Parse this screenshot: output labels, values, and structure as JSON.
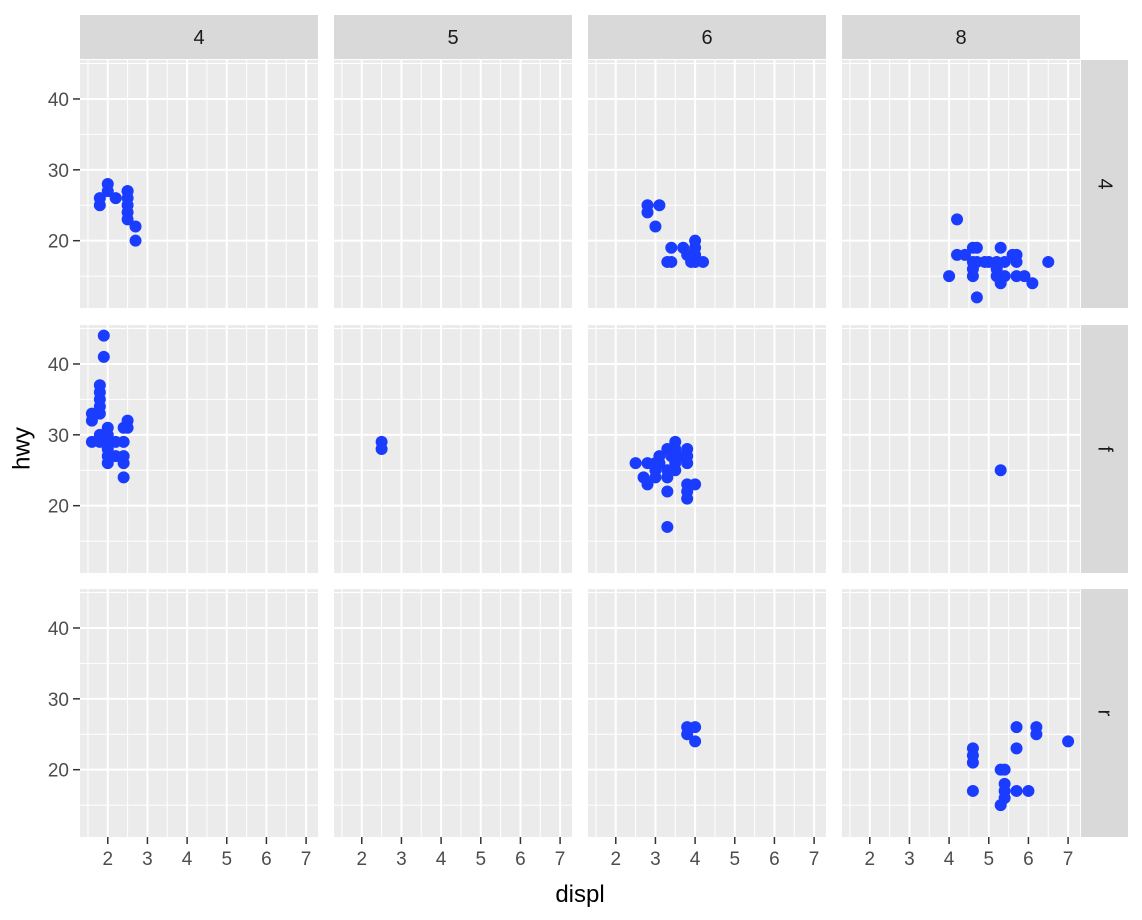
{
  "chart_data": {
    "type": "scatter",
    "facet_grid": true,
    "xlabel": "displ",
    "ylabel": "hwy",
    "xlim": [
      1.3,
      7.3
    ],
    "ylim": [
      10.5,
      45.5
    ],
    "x_ticks": [
      2,
      3,
      4,
      5,
      6,
      7
    ],
    "y_ticks": [
      20,
      30,
      40
    ],
    "grid": true,
    "point_color": "#1a3cff",
    "panel_background": "#ebebeb",
    "strip_background": "#d9d9d9",
    "col_strips": [
      "4",
      "5",
      "6",
      "8"
    ],
    "row_strips": [
      "4",
      "f",
      "r"
    ],
    "panels": [
      {
        "row": 0,
        "col": 0,
        "points": [
          [
            1.8,
            26
          ],
          [
            1.8,
            25
          ],
          [
            2.0,
            28
          ],
          [
            2.0,
            27
          ],
          [
            2.2,
            26
          ],
          [
            2.5,
            27
          ],
          [
            2.5,
            26
          ],
          [
            2.5,
            25
          ],
          [
            2.5,
            24
          ],
          [
            2.5,
            23
          ],
          [
            2.7,
            22
          ],
          [
            2.7,
            20
          ],
          [
            2.5,
            27
          ]
        ]
      },
      {
        "row": 0,
        "col": 1,
        "points": []
      },
      {
        "row": 0,
        "col": 2,
        "points": [
          [
            2.8,
            25
          ],
          [
            2.8,
            24
          ],
          [
            3.1,
            25
          ],
          [
            3.0,
            22
          ],
          [
            3.3,
            17
          ],
          [
            3.4,
            19
          ],
          [
            3.7,
            19
          ],
          [
            3.8,
            18
          ],
          [
            4.0,
            20
          ],
          [
            4.0,
            19
          ],
          [
            4.0,
            18
          ],
          [
            4.0,
            17
          ],
          [
            4.2,
            17
          ],
          [
            3.9,
            17
          ],
          [
            3.4,
            17
          ]
        ]
      },
      {
        "row": 0,
        "col": 3,
        "points": [
          [
            4.0,
            15
          ],
          [
            4.2,
            23
          ],
          [
            4.2,
            18
          ],
          [
            4.4,
            18
          ],
          [
            4.6,
            19
          ],
          [
            4.7,
            19
          ],
          [
            4.6,
            17
          ],
          [
            4.6,
            16
          ],
          [
            4.6,
            15
          ],
          [
            4.7,
            12
          ],
          [
            4.7,
            17
          ],
          [
            4.9,
            17
          ],
          [
            5.0,
            17
          ],
          [
            5.2,
            16
          ],
          [
            5.2,
            15
          ],
          [
            5.3,
            19
          ],
          [
            5.3,
            14
          ],
          [
            5.4,
            17
          ],
          [
            5.4,
            15
          ],
          [
            5.6,
            18
          ],
          [
            5.7,
            18
          ],
          [
            5.7,
            15
          ],
          [
            5.7,
            17
          ],
          [
            5.9,
            15
          ],
          [
            6.1,
            14
          ],
          [
            6.5,
            17
          ],
          [
            5.2,
            17
          ]
        ]
      },
      {
        "row": 1,
        "col": 0,
        "points": [
          [
            1.6,
            33
          ],
          [
            1.6,
            32
          ],
          [
            1.6,
            29
          ],
          [
            1.8,
            37
          ],
          [
            1.8,
            36
          ],
          [
            1.8,
            35
          ],
          [
            1.8,
            34
          ],
          [
            1.8,
            33
          ],
          [
            1.8,
            30
          ],
          [
            1.8,
            29
          ],
          [
            1.9,
            44
          ],
          [
            1.9,
            41
          ],
          [
            2.0,
            31
          ],
          [
            2.0,
            30
          ],
          [
            2.0,
            29
          ],
          [
            2.0,
            28
          ],
          [
            2.0,
            27
          ],
          [
            2.0,
            26
          ],
          [
            2.2,
            29
          ],
          [
            2.2,
            27
          ],
          [
            2.4,
            31
          ],
          [
            2.4,
            29
          ],
          [
            2.4,
            27
          ],
          [
            2.4,
            26
          ],
          [
            2.4,
            24
          ],
          [
            2.5,
            32
          ],
          [
            2.5,
            31
          ]
        ]
      },
      {
        "row": 1,
        "col": 1,
        "points": [
          [
            2.5,
            29
          ],
          [
            2.5,
            28
          ]
        ]
      },
      {
        "row": 1,
        "col": 2,
        "points": [
          [
            2.5,
            26
          ],
          [
            2.7,
            24
          ],
          [
            2.8,
            26
          ],
          [
            2.8,
            23
          ],
          [
            3.0,
            26
          ],
          [
            3.0,
            25
          ],
          [
            3.0,
            24
          ],
          [
            3.1,
            27
          ],
          [
            3.1,
            26
          ],
          [
            3.3,
            28
          ],
          [
            3.3,
            25
          ],
          [
            3.3,
            24
          ],
          [
            3.3,
            22
          ],
          [
            3.3,
            17
          ],
          [
            3.4,
            27
          ],
          [
            3.5,
            29
          ],
          [
            3.5,
            28
          ],
          [
            3.5,
            26
          ],
          [
            3.5,
            25
          ],
          [
            3.6,
            27
          ],
          [
            3.8,
            28
          ],
          [
            3.8,
            27
          ],
          [
            3.8,
            26
          ],
          [
            3.8,
            23
          ],
          [
            3.8,
            22
          ],
          [
            3.8,
            21
          ],
          [
            4.0,
            23
          ]
        ]
      },
      {
        "row": 1,
        "col": 3,
        "points": [
          [
            5.3,
            25
          ]
        ]
      },
      {
        "row": 2,
        "col": 0,
        "points": []
      },
      {
        "row": 2,
        "col": 1,
        "points": []
      },
      {
        "row": 2,
        "col": 2,
        "points": [
          [
            3.8,
            26
          ],
          [
            3.8,
            25
          ],
          [
            4.0,
            26
          ],
          [
            4.0,
            24
          ]
        ]
      },
      {
        "row": 2,
        "col": 3,
        "points": [
          [
            4.6,
            23
          ],
          [
            4.6,
            22
          ],
          [
            4.6,
            21
          ],
          [
            4.6,
            17
          ],
          [
            5.3,
            20
          ],
          [
            5.4,
            20
          ],
          [
            5.4,
            18
          ],
          [
            5.4,
            17
          ],
          [
            5.4,
            16
          ],
          [
            5.3,
            15
          ],
          [
            5.7,
            26
          ],
          [
            5.7,
            23
          ],
          [
            5.7,
            17
          ],
          [
            6.0,
            17
          ],
          [
            6.2,
            26
          ],
          [
            6.2,
            25
          ],
          [
            7.0,
            24
          ]
        ]
      }
    ]
  }
}
